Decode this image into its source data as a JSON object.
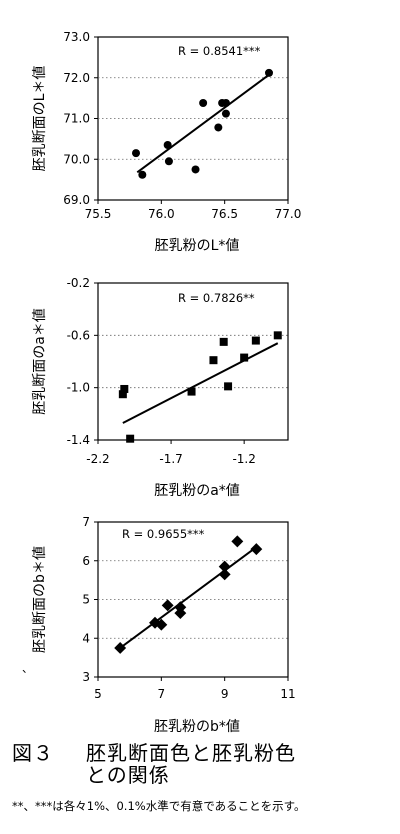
{
  "chart_data": [
    {
      "type": "scatter",
      "ylabel": "胚乳断面のL＊値",
      "xlabel": "胚乳粉のL*値",
      "annotation": "R = 0.8541***",
      "marker": "circle",
      "xlim": [
        75.5,
        77.0
      ],
      "ylim": [
        69.0,
        73.0
      ],
      "xticks": [
        "75.5",
        "76.0",
        "76.5",
        "77.0"
      ],
      "yticks": [
        "69.0",
        "70.0",
        "71.0",
        "72.0",
        "73.0"
      ],
      "grid": "horizontal dotted",
      "trendline": [
        [
          75.81,
          69.68
        ],
        [
          76.84,
          72.05
        ]
      ],
      "points": [
        [
          75.8,
          70.15
        ],
        [
          75.85,
          69.62
        ],
        [
          76.05,
          70.35
        ],
        [
          76.06,
          69.95
        ],
        [
          76.27,
          69.75
        ],
        [
          76.33,
          71.38
        ],
        [
          76.45,
          70.78
        ],
        [
          76.48,
          71.38
        ],
        [
          76.51,
          71.38
        ],
        [
          76.51,
          71.12
        ],
        [
          76.85,
          72.12
        ]
      ]
    },
    {
      "type": "scatter",
      "ylabel": "胚乳断面のa＊値",
      "xlabel": "胚乳粉のa*値",
      "annotation": "R = 0.7826**",
      "marker": "square",
      "xlim": [
        -2.2,
        -0.9
      ],
      "ylim": [
        -1.4,
        -0.2
      ],
      "xticks": [
        "-2.2",
        "-1.7",
        "-1.2"
      ],
      "yticks": [
        "-1.4",
        "-1.0",
        "-0.6",
        "-0.2"
      ],
      "grid": "horizontal dotted",
      "trendline": [
        [
          -2.03,
          -1.27
        ],
        [
          -0.97,
          -0.66
        ]
      ],
      "points": [
        [
          -2.03,
          -1.05
        ],
        [
          -2.02,
          -1.01
        ],
        [
          -1.98,
          -1.39
        ],
        [
          -1.56,
          -1.03
        ],
        [
          -1.41,
          -0.79
        ],
        [
          -1.34,
          -0.65
        ],
        [
          -1.31,
          -0.99
        ],
        [
          -1.2,
          -0.77
        ],
        [
          -1.12,
          -0.64
        ],
        [
          -0.97,
          -0.6
        ]
      ]
    },
    {
      "type": "scatter",
      "ylabel": "胚乳断面のb＊値",
      "xlabel": "胚乳粉のb*値",
      "annotation": "R = 0.9655***",
      "marker": "diamond",
      "xlim": [
        5,
        11
      ],
      "ylim": [
        3,
        7
      ],
      "xticks": [
        "5",
        "7",
        "9",
        "11"
      ],
      "yticks": [
        "3",
        "4",
        "5",
        "6",
        "7"
      ],
      "grid": "horizontal dotted",
      "trendline": [
        [
          5.7,
          3.75
        ],
        [
          10.0,
          6.35
        ]
      ],
      "points": [
        [
          5.7,
          3.75
        ],
        [
          6.8,
          4.4
        ],
        [
          7.0,
          4.35
        ],
        [
          7.2,
          4.85
        ],
        [
          7.6,
          4.8
        ],
        [
          7.6,
          4.65
        ],
        [
          9.0,
          5.85
        ],
        [
          9.0,
          5.65
        ],
        [
          9.4,
          6.5
        ],
        [
          10.0,
          6.3
        ]
      ]
    }
  ],
  "caption": {
    "number": "図３",
    "line1": "胚乳断面色と胚乳粉色",
    "line2": "との関係"
  },
  "note": "**、***は各々1%、0.1%水準で有意であることを示す。",
  "stray_mark": "、"
}
